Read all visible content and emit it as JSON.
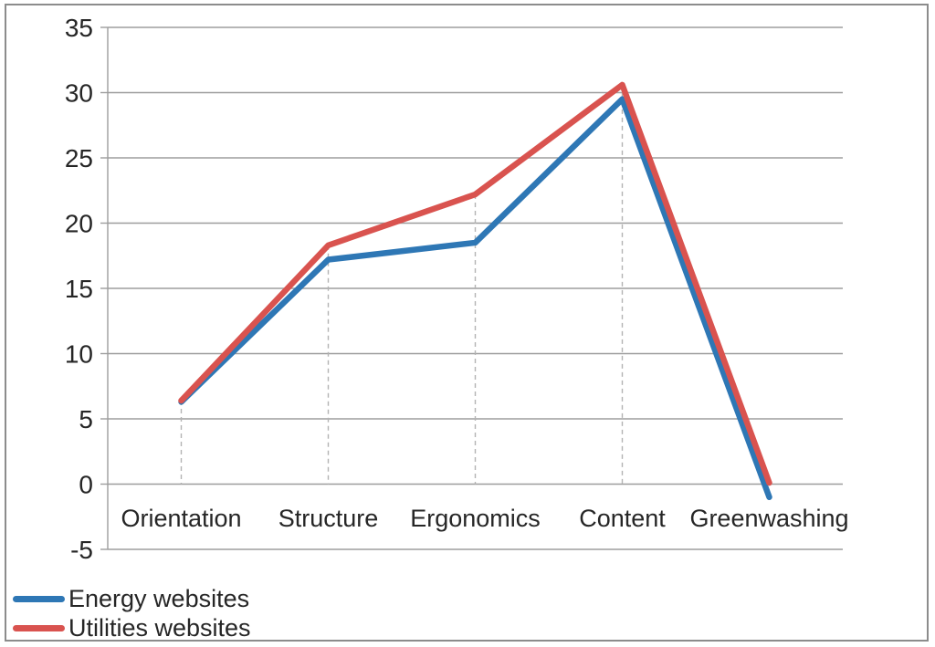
{
  "chart_data": {
    "type": "line",
    "categories": [
      "Orientation",
      "Structure",
      "Ergonomics",
      "Content",
      "Greenwashing"
    ],
    "series": [
      {
        "name": "Energy websites",
        "color": "#2e77b5",
        "values": [
          6.3,
          17.2,
          18.5,
          29.5,
          -1.0
        ]
      },
      {
        "name": "Utilities websites",
        "color": "#d9534f",
        "values": [
          6.4,
          18.3,
          22.2,
          30.6,
          0.1
        ]
      }
    ],
    "title": "",
    "xlabel": "",
    "ylabel": "",
    "ylim": [
      -5,
      35
    ],
    "y_ticks": [
      35,
      30,
      25,
      20,
      15,
      10,
      5,
      0,
      -5
    ],
    "grid": true,
    "drop_lines": true,
    "legend_position": "bottom-left"
  },
  "style": {
    "gridline_color": "#9d9d9d",
    "axis_color": "#9d9d9d",
    "drop_line_color": "#b3b3b3",
    "text_color": "#262626",
    "frame_border_color": "#8c8c8c",
    "line_width": 6.5
  }
}
